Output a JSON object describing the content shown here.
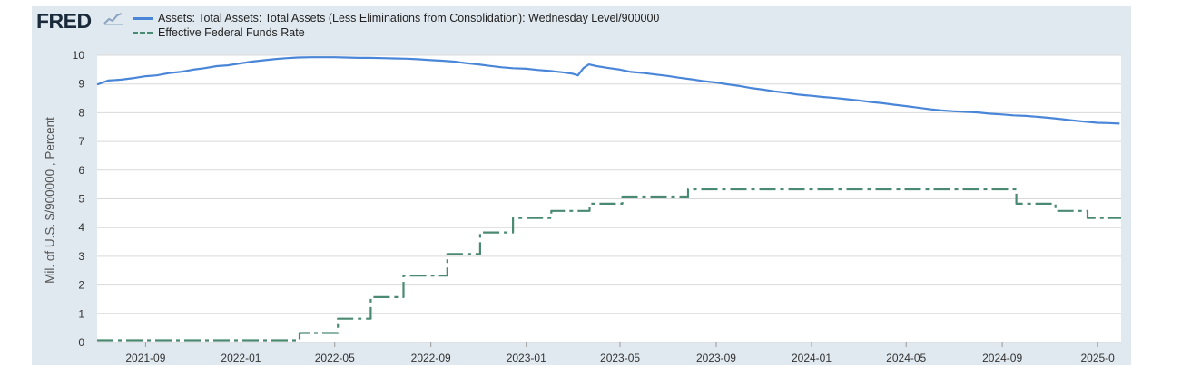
{
  "brand": {
    "logo_text": "FRED"
  },
  "chart_data": {
    "type": "line",
    "ylabel": "Mil. of U.S. $/900000 , Percent",
    "xlabel": "",
    "ylim": [
      0,
      10
    ],
    "yticks": [
      "0",
      "1",
      "2",
      "3",
      "4",
      "5",
      "6",
      "7",
      "8",
      "9",
      "10"
    ],
    "xticks": [
      {
        "date": "2021-09-01",
        "label": "2021-09"
      },
      {
        "date": "2022-01-01",
        "label": "2022-01"
      },
      {
        "date": "2022-05-01",
        "label": "2022-05"
      },
      {
        "date": "2022-09-01",
        "label": "2022-09"
      },
      {
        "date": "2023-01-01",
        "label": "2023-01"
      },
      {
        "date": "2023-05-01",
        "label": "2023-05"
      },
      {
        "date": "2023-09-01",
        "label": "2023-09"
      },
      {
        "date": "2024-01-01",
        "label": "2024-01"
      },
      {
        "date": "2024-05-01",
        "label": "2024-05"
      },
      {
        "date": "2024-09-01",
        "label": "2024-09"
      },
      {
        "date": "2025-01-01",
        "label": "2025-0"
      }
    ],
    "x_range": [
      "2021-07-01",
      "2025-01-31"
    ],
    "grid": true,
    "legend_position": "top-left",
    "series": [
      {
        "name": "Assets: Total Assets: Total Assets (Less Eliminations from Consolidation): Wednesday Level/900000",
        "color": "#4a86d8",
        "style": "solid",
        "x": [
          "2021-07-01",
          "2021-07-15",
          "2021-08-01",
          "2021-08-15",
          "2021-09-01",
          "2021-09-15",
          "2021-10-01",
          "2021-10-15",
          "2021-11-01",
          "2021-11-15",
          "2021-12-01",
          "2021-12-15",
          "2022-01-01",
          "2022-01-15",
          "2022-02-01",
          "2022-02-15",
          "2022-03-01",
          "2022-03-15",
          "2022-04-01",
          "2022-04-15",
          "2022-05-01",
          "2022-05-15",
          "2022-06-01",
          "2022-06-15",
          "2022-07-01",
          "2022-07-15",
          "2022-08-01",
          "2022-08-15",
          "2022-09-01",
          "2022-09-15",
          "2022-10-01",
          "2022-10-15",
          "2022-11-01",
          "2022-11-15",
          "2022-12-01",
          "2022-12-15",
          "2023-01-01",
          "2023-01-15",
          "2023-02-01",
          "2023-02-15",
          "2023-03-01",
          "2023-03-08",
          "2023-03-15",
          "2023-03-22",
          "2023-04-01",
          "2023-04-15",
          "2023-05-01",
          "2023-05-15",
          "2023-06-01",
          "2023-06-15",
          "2023-07-01",
          "2023-07-15",
          "2023-08-01",
          "2023-08-15",
          "2023-09-01",
          "2023-09-15",
          "2023-10-01",
          "2023-10-15",
          "2023-11-01",
          "2023-11-15",
          "2023-12-01",
          "2023-12-15",
          "2024-01-01",
          "2024-01-15",
          "2024-02-01",
          "2024-02-15",
          "2024-03-01",
          "2024-03-15",
          "2024-04-01",
          "2024-04-15",
          "2024-05-01",
          "2024-05-15",
          "2024-06-01",
          "2024-06-15",
          "2024-07-01",
          "2024-07-15",
          "2024-08-01",
          "2024-08-15",
          "2024-09-01",
          "2024-09-15",
          "2024-10-01",
          "2024-10-15",
          "2024-11-01",
          "2024-11-15",
          "2024-12-01",
          "2024-12-15",
          "2025-01-01",
          "2025-01-15",
          "2025-01-29"
        ],
        "values": [
          8.98,
          9.12,
          9.15,
          9.2,
          9.27,
          9.3,
          9.38,
          9.42,
          9.5,
          9.55,
          9.62,
          9.65,
          9.72,
          9.78,
          9.83,
          9.87,
          9.9,
          9.92,
          9.93,
          9.93,
          9.93,
          9.92,
          9.91,
          9.91,
          9.9,
          9.89,
          9.88,
          9.86,
          9.83,
          9.81,
          9.78,
          9.73,
          9.68,
          9.63,
          9.58,
          9.55,
          9.53,
          9.49,
          9.45,
          9.41,
          9.36,
          9.3,
          9.55,
          9.68,
          9.62,
          9.56,
          9.5,
          9.42,
          9.38,
          9.33,
          9.28,
          9.22,
          9.16,
          9.1,
          9.05,
          8.99,
          8.93,
          8.86,
          8.8,
          8.74,
          8.69,
          8.63,
          8.59,
          8.55,
          8.51,
          8.47,
          8.43,
          8.38,
          8.33,
          8.28,
          8.23,
          8.18,
          8.12,
          8.08,
          8.05,
          8.03,
          8.01,
          7.97,
          7.94,
          7.91,
          7.89,
          7.86,
          7.82,
          7.78,
          7.73,
          7.69,
          7.65,
          7.64,
          7.62
        ]
      },
      {
        "name": "Effective Federal Funds Rate",
        "color": "#4a8a72",
        "style": "dashed",
        "step": true,
        "x": [
          "2021-07-01",
          "2022-03-17",
          "2022-05-05",
          "2022-06-16",
          "2022-07-28",
          "2022-09-22",
          "2022-11-03",
          "2022-12-15",
          "2023-02-02",
          "2023-03-23",
          "2023-05-04",
          "2023-07-27",
          "2024-09-19",
          "2024-11-08",
          "2024-12-19",
          "2025-01-31"
        ],
        "values": [
          0.08,
          0.33,
          0.83,
          1.58,
          2.33,
          3.08,
          3.83,
          4.33,
          4.58,
          4.83,
          5.08,
          5.33,
          4.83,
          4.58,
          4.33,
          4.33
        ]
      }
    ]
  }
}
